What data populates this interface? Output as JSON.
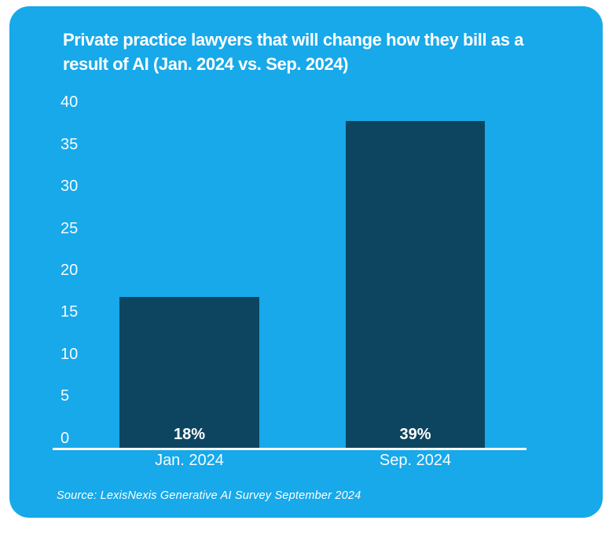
{
  "card": {
    "background_color": "#17A9EA"
  },
  "chart_data": {
    "type": "bar",
    "title": "Private practice lawyers that will change how they bill as a result of AI (Jan. 2024 vs. Sep. 2024)",
    "title_lines": [
      "Private practice lawyers that will change how they bill as a",
      "result of AI (Jan. 2024 vs. Sep. 2024)"
    ],
    "categories": [
      "Jan. 2024",
      "Sep. 2024"
    ],
    "values": [
      18,
      39
    ],
    "value_labels": [
      "18%",
      "39%"
    ],
    "xlabel": "",
    "ylabel": "",
    "ylim": [
      0,
      40
    ],
    "ytick_interval": 5,
    "yticks": [
      0,
      5,
      10,
      15,
      20,
      25,
      30,
      35,
      40
    ],
    "grid": false,
    "legend_position": "none",
    "bar_color": "#0D4560",
    "text_color": "#FFFFFF",
    "source": "Source: LexisNexis Generative AI Survey September 2024"
  }
}
